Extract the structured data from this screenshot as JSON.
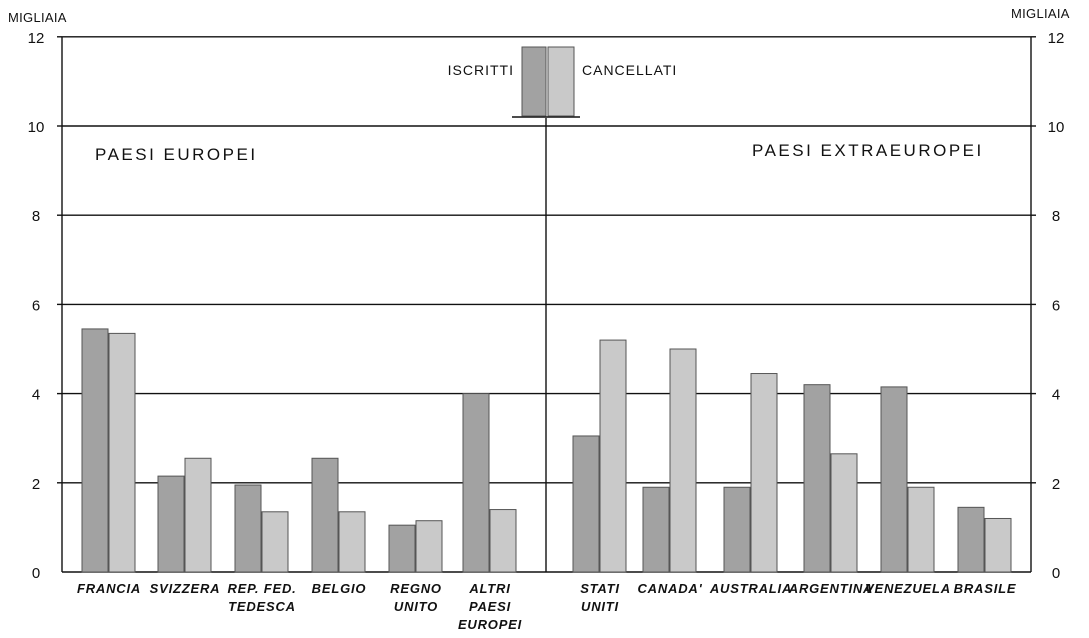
{
  "chart_data": {
    "type": "bar",
    "unit_left": "MIGLIAIA",
    "unit_right": "MIGLIAIA",
    "ylim": [
      0,
      12
    ],
    "yticks": [
      "0",
      "2",
      "4",
      "6",
      "8",
      "10",
      "12"
    ],
    "grid": true,
    "groups": [
      {
        "label": "PAESI EUROPEI",
        "side": "left"
      },
      {
        "label": "PAESI EXTRAEUROPEI",
        "side": "right"
      }
    ],
    "legend": {
      "placement": "top-center"
    },
    "series": [
      {
        "name": "ISCRITTI",
        "color": "#a2a2a2",
        "values": [
          5.45,
          2.15,
          1.95,
          2.55,
          1.05,
          4.0,
          3.05,
          1.9,
          1.9,
          4.2,
          4.15,
          1.45
        ]
      },
      {
        "name": "CANCELLATI",
        "color": "#c9c9c9",
        "values": [
          5.35,
          2.55,
          1.35,
          1.35,
          1.15,
          1.4,
          5.2,
          5.0,
          4.45,
          2.65,
          1.9,
          1.2
        ]
      }
    ],
    "categories": [
      [
        "FRANCIA"
      ],
      [
        "SVIZZERA"
      ],
      [
        "REP. FED.",
        "TEDESCA"
      ],
      [
        "BELGIO"
      ],
      [
        "REGNO",
        "UNITO"
      ],
      [
        "ALTRI",
        "PAESI",
        "EUROPEI"
      ],
      [
        "STATI",
        "UNITI"
      ],
      [
        "CANADA'"
      ],
      [
        "AUSTRALIA"
      ],
      [
        "ARGENTINA"
      ],
      [
        "VENEZUELA"
      ],
      [
        "BRASILE"
      ]
    ]
  }
}
